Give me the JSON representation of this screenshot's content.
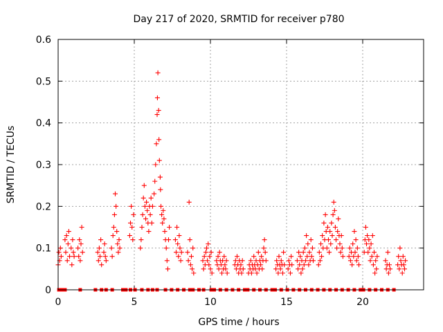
{
  "chart_data": {
    "type": "scatter",
    "title": "Day 217 of 2020, SRMTID for receiver p780",
    "xlabel": "GPS time / hours",
    "ylabel": "SRMTID / TECUs",
    "xlim": [
      0,
      24
    ],
    "ylim": [
      0,
      0.6
    ],
    "x_ticks": [
      0,
      5,
      10,
      15,
      20
    ],
    "y_ticks": [
      0,
      0.1,
      0.2,
      0.3,
      0.4,
      0.5,
      0.6
    ],
    "x_tick_labels": [
      "0",
      "5",
      "10",
      "15",
      "20"
    ],
    "y_tick_labels": [
      "0",
      "0.1",
      "0.2",
      "0.3",
      "0.4",
      "0.5",
      "0.6"
    ],
    "grid": true,
    "marker": "+",
    "series_color": "#ff0000",
    "series": [
      {
        "name": "SRMTID",
        "points": [
          [
            0.0,
            0.06
          ],
          [
            0.05,
            0.09
          ],
          [
            0.1,
            0.07
          ],
          [
            0.15,
            0.1
          ],
          [
            0.2,
            0.08
          ],
          [
            0.45,
            0.12
          ],
          [
            0.5,
            0.09
          ],
          [
            0.55,
            0.13
          ],
          [
            0.6,
            0.07
          ],
          [
            0.65,
            0.11
          ],
          [
            0.7,
            0.14
          ],
          [
            0.75,
            0.08
          ],
          [
            0.85,
            0.1
          ],
          [
            0.9,
            0.06
          ],
          [
            0.95,
            0.12
          ],
          [
            1.0,
            0.09
          ],
          [
            1.05,
            0.08
          ],
          [
            1.3,
            0.1
          ],
          [
            1.35,
            0.08
          ],
          [
            1.4,
            0.12
          ],
          [
            1.45,
            0.07
          ],
          [
            1.5,
            0.11
          ],
          [
            1.55,
            0.15
          ],
          [
            1.6,
            0.09
          ],
          [
            2.6,
            0.09
          ],
          [
            2.65,
            0.07
          ],
          [
            2.7,
            0.1
          ],
          [
            2.75,
            0.08
          ],
          [
            2.8,
            0.12
          ],
          [
            2.85,
            0.06
          ],
          [
            3.0,
            0.09
          ],
          [
            3.05,
            0.11
          ],
          [
            3.1,
            0.08
          ],
          [
            3.15,
            0.07
          ],
          [
            3.5,
            0.1
          ],
          [
            3.55,
            0.08
          ],
          [
            3.6,
            0.13
          ],
          [
            3.65,
            0.15
          ],
          [
            3.7,
            0.18
          ],
          [
            3.75,
            0.23
          ],
          [
            3.8,
            0.2
          ],
          [
            3.85,
            0.14
          ],
          [
            3.9,
            0.11
          ],
          [
            3.95,
            0.09
          ],
          [
            4.0,
            0.12
          ],
          [
            4.05,
            0.1
          ],
          [
            4.7,
            0.13
          ],
          [
            4.75,
            0.16
          ],
          [
            4.8,
            0.2
          ],
          [
            4.85,
            0.15
          ],
          [
            4.9,
            0.12
          ],
          [
            4.95,
            0.18
          ],
          [
            5.4,
            0.1
          ],
          [
            5.45,
            0.12
          ],
          [
            5.5,
            0.15
          ],
          [
            5.55,
            0.18
          ],
          [
            5.6,
            0.22
          ],
          [
            5.65,
            0.25
          ],
          [
            5.7,
            0.2
          ],
          [
            5.75,
            0.17
          ],
          [
            5.8,
            0.21
          ],
          [
            5.85,
            0.19
          ],
          [
            5.9,
            0.16
          ],
          [
            5.95,
            0.14
          ],
          [
            6.0,
            0.2
          ],
          [
            6.05,
            0.18
          ],
          [
            6.1,
            0.22
          ],
          [
            6.15,
            0.16
          ],
          [
            6.2,
            0.2
          ],
          [
            6.3,
            0.23
          ],
          [
            6.35,
            0.26
          ],
          [
            6.4,
            0.3
          ],
          [
            6.45,
            0.35
          ],
          [
            6.5,
            0.42
          ],
          [
            6.52,
            0.46
          ],
          [
            6.55,
            0.52
          ],
          [
            6.6,
            0.43
          ],
          [
            6.62,
            0.36
          ],
          [
            6.65,
            0.31
          ],
          [
            6.7,
            0.27
          ],
          [
            6.72,
            0.24
          ],
          [
            6.75,
            0.2
          ],
          [
            6.8,
            0.18
          ],
          [
            6.85,
            0.16
          ],
          [
            6.9,
            0.19
          ],
          [
            6.95,
            0.17
          ],
          [
            7.0,
            0.14
          ],
          [
            7.05,
            0.12
          ],
          [
            7.1,
            0.1
          ],
          [
            7.15,
            0.07
          ],
          [
            7.2,
            0.05
          ],
          [
            7.25,
            0.12
          ],
          [
            7.3,
            0.15
          ],
          [
            7.7,
            0.12
          ],
          [
            7.75,
            0.09
          ],
          [
            7.8,
            0.15
          ],
          [
            7.85,
            0.11
          ],
          [
            7.9,
            0.08
          ],
          [
            7.95,
            0.13
          ],
          [
            8.0,
            0.1
          ],
          [
            8.05,
            0.07
          ],
          [
            8.1,
            0.09
          ],
          [
            8.5,
            0.09
          ],
          [
            8.55,
            0.07
          ],
          [
            8.6,
            0.21
          ],
          [
            8.65,
            0.12
          ],
          [
            8.7,
            0.06
          ],
          [
            8.75,
            0.08
          ],
          [
            8.8,
            0.05
          ],
          [
            8.85,
            0.1
          ],
          [
            8.9,
            0.04
          ],
          [
            9.5,
            0.07
          ],
          [
            9.55,
            0.05
          ],
          [
            9.6,
            0.08
          ],
          [
            9.65,
            0.06
          ],
          [
            9.7,
            0.09
          ],
          [
            9.75,
            0.1
          ],
          [
            9.8,
            0.07
          ],
          [
            9.85,
            0.11
          ],
          [
            9.9,
            0.06
          ],
          [
            9.95,
            0.08
          ],
          [
            10.0,
            0.05
          ],
          [
            10.05,
            0.09
          ],
          [
            10.1,
            0.04
          ],
          [
            10.4,
            0.07
          ],
          [
            10.45,
            0.06
          ],
          [
            10.5,
            0.08
          ],
          [
            10.55,
            0.05
          ],
          [
            10.6,
            0.09
          ],
          [
            10.65,
            0.07
          ],
          [
            10.7,
            0.06
          ],
          [
            10.75,
            0.04
          ],
          [
            10.8,
            0.07
          ],
          [
            10.85,
            0.05
          ],
          [
            10.9,
            0.08
          ],
          [
            10.95,
            0.06
          ],
          [
            11.0,
            0.05
          ],
          [
            11.05,
            0.07
          ],
          [
            11.1,
            0.04
          ],
          [
            11.6,
            0.06
          ],
          [
            11.65,
            0.07
          ],
          [
            11.7,
            0.05
          ],
          [
            11.75,
            0.08
          ],
          [
            11.8,
            0.06
          ],
          [
            11.85,
            0.04
          ],
          [
            11.9,
            0.07
          ],
          [
            11.95,
            0.05
          ],
          [
            12.0,
            0.06
          ],
          [
            12.05,
            0.04
          ],
          [
            12.1,
            0.07
          ],
          [
            12.15,
            0.05
          ],
          [
            12.5,
            0.04
          ],
          [
            12.55,
            0.06
          ],
          [
            12.6,
            0.05
          ],
          [
            12.65,
            0.07
          ],
          [
            12.7,
            0.04
          ],
          [
            12.75,
            0.06
          ],
          [
            12.8,
            0.05
          ],
          [
            12.85,
            0.08
          ],
          [
            12.9,
            0.06
          ],
          [
            12.95,
            0.05
          ],
          [
            13.0,
            0.07
          ],
          [
            13.05,
            0.04
          ],
          [
            13.1,
            0.06
          ],
          [
            13.15,
            0.09
          ],
          [
            13.2,
            0.05
          ],
          [
            13.25,
            0.07
          ],
          [
            13.3,
            0.06
          ],
          [
            13.35,
            0.08
          ],
          [
            13.4,
            0.05
          ],
          [
            13.45,
            0.07
          ],
          [
            13.5,
            0.1
          ],
          [
            13.55,
            0.12
          ],
          [
            13.6,
            0.09
          ],
          [
            13.65,
            0.07
          ],
          [
            14.3,
            0.05
          ],
          [
            14.35,
            0.07
          ],
          [
            14.4,
            0.06
          ],
          [
            14.45,
            0.04
          ],
          [
            14.5,
            0.08
          ],
          [
            14.55,
            0.06
          ],
          [
            14.6,
            0.05
          ],
          [
            14.65,
            0.07
          ],
          [
            14.7,
            0.06
          ],
          [
            14.75,
            0.04
          ],
          [
            14.8,
            0.09
          ],
          [
            14.85,
            0.06
          ],
          [
            15.1,
            0.05
          ],
          [
            15.15,
            0.07
          ],
          [
            15.2,
            0.06
          ],
          [
            15.25,
            0.04
          ],
          [
            15.3,
            0.08
          ],
          [
            15.35,
            0.06
          ],
          [
            15.7,
            0.07
          ],
          [
            15.75,
            0.05
          ],
          [
            15.8,
            0.09
          ],
          [
            15.85,
            0.06
          ],
          [
            15.9,
            0.08
          ],
          [
            15.95,
            0.04
          ],
          [
            16.0,
            0.07
          ],
          [
            16.05,
            0.05
          ],
          [
            16.1,
            0.09
          ],
          [
            16.15,
            0.06
          ],
          [
            16.2,
            0.1
          ],
          [
            16.25,
            0.07
          ],
          [
            16.3,
            0.13
          ],
          [
            16.35,
            0.08
          ],
          [
            16.4,
            0.11
          ],
          [
            16.45,
            0.06
          ],
          [
            16.5,
            0.09
          ],
          [
            16.55,
            0.07
          ],
          [
            16.6,
            0.12
          ],
          [
            16.65,
            0.08
          ],
          [
            16.7,
            0.1
          ],
          [
            16.75,
            0.07
          ],
          [
            17.1,
            0.06
          ],
          [
            17.15,
            0.09
          ],
          [
            17.2,
            0.07
          ],
          [
            17.25,
            0.11
          ],
          [
            17.3,
            0.08
          ],
          [
            17.35,
            0.13
          ],
          [
            17.4,
            0.1
          ],
          [
            17.45,
            0.16
          ],
          [
            17.5,
            0.12
          ],
          [
            17.55,
            0.18
          ],
          [
            17.6,
            0.14
          ],
          [
            17.65,
            0.1
          ],
          [
            17.7,
            0.15
          ],
          [
            17.75,
            0.12
          ],
          [
            17.8,
            0.09
          ],
          [
            17.85,
            0.14
          ],
          [
            17.9,
            0.11
          ],
          [
            17.95,
            0.16
          ],
          [
            18.0,
            0.13
          ],
          [
            18.05,
            0.18
          ],
          [
            18.1,
            0.21
          ],
          [
            18.15,
            0.19
          ],
          [
            18.2,
            0.15
          ],
          [
            18.25,
            0.12
          ],
          [
            18.3,
            0.1
          ],
          [
            18.35,
            0.14
          ],
          [
            18.4,
            0.17
          ],
          [
            18.45,
            0.13
          ],
          [
            18.5,
            0.11
          ],
          [
            18.55,
            0.09
          ],
          [
            18.6,
            0.13
          ],
          [
            18.65,
            0.1
          ],
          [
            18.7,
            0.08
          ],
          [
            19.1,
            0.08
          ],
          [
            19.15,
            0.1
          ],
          [
            19.2,
            0.07
          ],
          [
            19.25,
            0.09
          ],
          [
            19.3,
            0.06
          ],
          [
            19.35,
            0.11
          ],
          [
            19.4,
            0.08
          ],
          [
            19.45,
            0.14
          ],
          [
            19.5,
            0.09
          ],
          [
            19.55,
            0.12
          ],
          [
            19.6,
            0.07
          ],
          [
            19.65,
            0.1
          ],
          [
            19.7,
            0.08
          ],
          [
            19.75,
            0.06
          ],
          [
            20.1,
            0.09
          ],
          [
            20.15,
            0.12
          ],
          [
            20.2,
            0.15
          ],
          [
            20.25,
            0.11
          ],
          [
            20.3,
            0.13
          ],
          [
            20.35,
            0.09
          ],
          [
            20.4,
            0.12
          ],
          [
            20.45,
            0.1
          ],
          [
            20.5,
            0.07
          ],
          [
            20.55,
            0.11
          ],
          [
            20.6,
            0.08
          ],
          [
            20.65,
            0.13
          ],
          [
            20.7,
            0.06
          ],
          [
            20.75,
            0.09
          ],
          [
            20.8,
            0.04
          ],
          [
            20.85,
            0.07
          ],
          [
            20.9,
            0.05
          ],
          [
            20.95,
            0.08
          ],
          [
            21.5,
            0.07
          ],
          [
            21.55,
            0.05
          ],
          [
            21.6,
            0.06
          ],
          [
            21.65,
            0.09
          ],
          [
            21.7,
            0.04
          ],
          [
            21.75,
            0.06
          ],
          [
            21.8,
            0.05
          ],
          [
            22.3,
            0.06
          ],
          [
            22.35,
            0.08
          ],
          [
            22.4,
            0.05
          ],
          [
            22.45,
            0.1
          ],
          [
            22.5,
            0.07
          ],
          [
            22.55,
            0.06
          ],
          [
            22.6,
            0.04
          ],
          [
            22.65,
            0.08
          ],
          [
            22.7,
            0.06
          ],
          [
            22.75,
            0.05
          ],
          [
            22.8,
            0.07
          ]
        ]
      }
    ],
    "zero_markers": [
      0.05,
      0.25,
      0.45,
      1.45,
      2.45,
      2.85,
      3.15,
      3.55,
      4.25,
      4.45,
      4.75,
      5.05,
      5.5,
      5.9,
      6.2,
      6.5,
      7.05,
      7.45,
      7.85,
      8.25,
      8.65,
      8.85,
      9.25,
      9.55,
      10.05,
      10.25,
      10.65,
      11.05,
      11.45,
      11.85,
      12.25,
      12.45,
      12.85,
      13.25,
      13.65,
      14.05,
      14.25,
      14.65,
      15.05,
      15.45,
      15.85,
      16.25,
      16.65,
      17.05,
      17.45,
      17.85,
      18.25,
      18.65,
      19.05,
      19.45,
      19.85,
      20.05,
      20.45,
      20.85,
      21.25,
      21.65,
      22.05
    ]
  }
}
